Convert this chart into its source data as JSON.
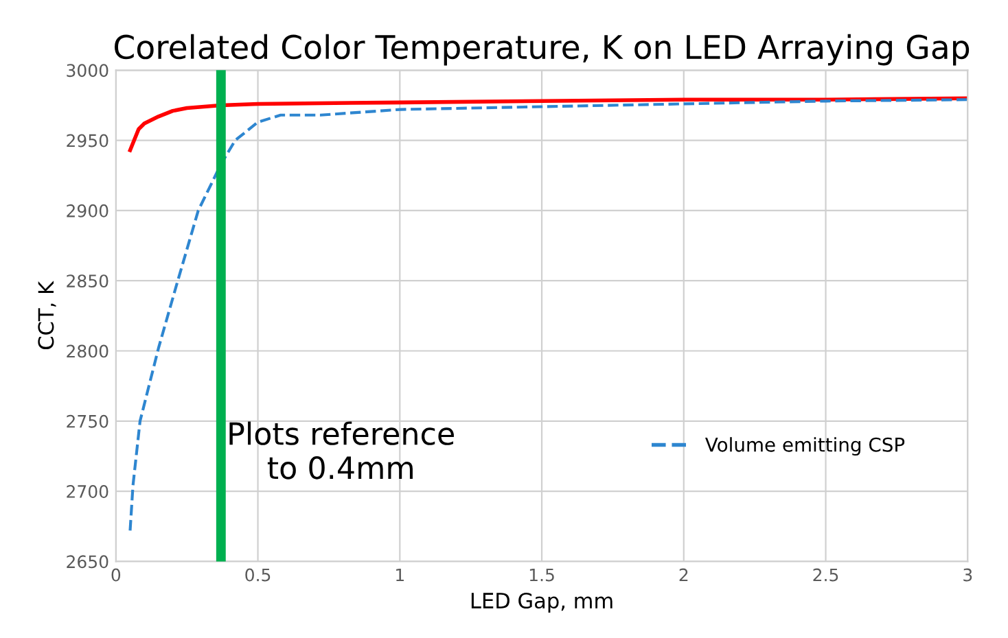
{
  "chart_data": {
    "type": "line",
    "title": "Corelated Color Temperature, K on LED Arraying Gap",
    "xlabel": "LED Gap, mm",
    "ylabel": "CCT, K",
    "xlim": [
      0,
      3
    ],
    "xticks": [
      0,
      0.5,
      1,
      1.5,
      2,
      2.5,
      3
    ],
    "ylim": [
      2650,
      3000
    ],
    "yticks": [
      2650,
      2700,
      2750,
      2800,
      2850,
      2900,
      2950,
      3000
    ],
    "grid": true,
    "legend": "bottom right",
    "series": [
      {
        "color": "#ff0000",
        "line_style": "solid",
        "x": [
          0.05,
          0.08,
          0.1,
          0.15,
          0.2,
          0.25,
          0.37,
          0.5,
          1,
          1.5,
          2,
          2.5,
          3
        ],
        "values": [
          2943,
          2958,
          2962,
          2967,
          2971,
          2973,
          2975,
          2976,
          2977,
          2978,
          2979,
          2979,
          2980
        ]
      },
      {
        "name": "Volume emitting CSP",
        "color": "#2e86d0",
        "line_style": "dashed",
        "x": [
          0.05,
          0.06,
          0.085,
          0.15,
          0.215,
          0.29,
          0.37,
          0.42,
          0.5,
          0.58,
          0.72,
          1,
          1.5,
          2,
          2.5,
          3
        ],
        "values": [
          2672,
          2704,
          2750,
          2802,
          2848,
          2900,
          2933,
          2950,
          2963,
          2968,
          2968,
          2972,
          2974,
          2976,
          2978,
          2979
        ]
      }
    ],
    "ref_lines": [
      {
        "axis": "x",
        "value": 0.37,
        "color": "#00b050",
        "label": "Plots reference\nto 0.4mm"
      }
    ]
  }
}
